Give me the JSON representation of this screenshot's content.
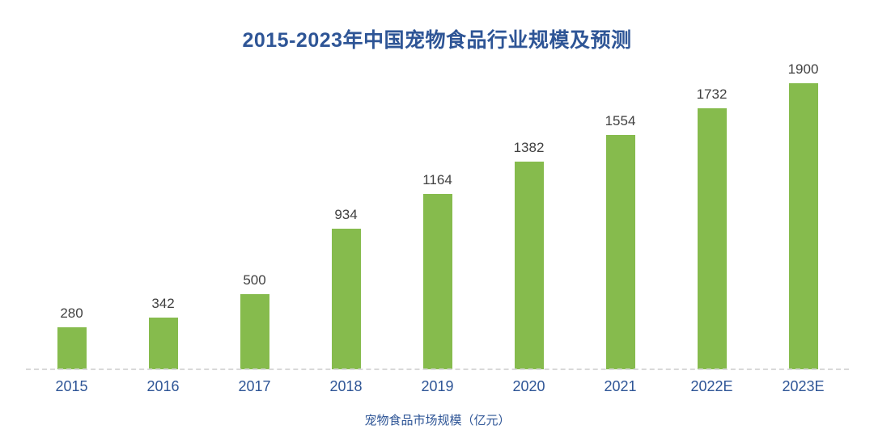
{
  "chart_data": {
    "type": "bar",
    "title": "2015-2023年中国宠物食品行业规模及预测",
    "categories": [
      "2015",
      "2016",
      "2017",
      "2018",
      "2019",
      "2020",
      "2021",
      "2022E",
      "2023E"
    ],
    "values": [
      280,
      342,
      500,
      934,
      1164,
      1382,
      1554,
      1732,
      1900
    ],
    "series_label": "宠物食品市场规模（亿元）",
    "xlabel": "",
    "ylabel": "宠物食品市场规模（亿元）",
    "ylim": [
      0,
      2000
    ],
    "grid": false,
    "legend_position": "bottom",
    "value_labels_shown": true,
    "colors": {
      "bar": "#86BB4D",
      "title": "#2E5596",
      "axis_labels": "#2E5596",
      "value_labels": "#404040",
      "baseline": "#D9D9D9",
      "background": "#FFFFFF"
    }
  }
}
